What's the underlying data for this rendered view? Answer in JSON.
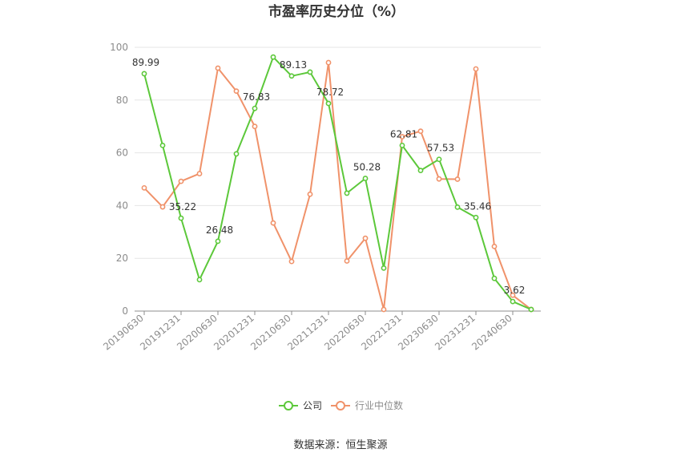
{
  "chart_data": {
    "type": "line",
    "title": "市盈率历史分位（%）",
    "source": "数据来源：恒生聚源",
    "ylim": [
      0,
      100
    ],
    "yticks": [
      0,
      20,
      40,
      60,
      80,
      100
    ],
    "grid": true,
    "legend_position": "bottom",
    "x": [
      "20190630",
      "20190930",
      "20191231",
      "20200331",
      "20200630",
      "20200930",
      "20201231",
      "20210331",
      "20210630",
      "20210930",
      "20211231",
      "20220331",
      "20220630",
      "20220930",
      "20221231",
      "20230331",
      "20230630",
      "20230930",
      "20231231",
      "20240331",
      "20240630",
      "20240930"
    ],
    "x_tick_labels": [
      "20190630",
      "20191231",
      "20200630",
      "20201231",
      "20210630",
      "20211231",
      "20220630",
      "20221231",
      "20230630",
      "20231231",
      "20240630"
    ],
    "series": [
      {
        "name": "公司",
        "color": "#5cc83a",
        "values": [
          89.99,
          62.8,
          35.22,
          11.9,
          26.48,
          59.6,
          76.83,
          96.3,
          89.13,
          90.6,
          78.72,
          44.7,
          50.28,
          16.3,
          62.81,
          53.3,
          57.53,
          39.4,
          35.46,
          12.4,
          3.62,
          0.6
        ],
        "labels": [
          "89.99",
          "",
          "35.22",
          "",
          "26.48",
          "",
          "76.83",
          "",
          "89.13",
          "",
          "78.72",
          "",
          "50.28",
          "",
          "62.81",
          "",
          "57.53",
          "",
          "35.46",
          "",
          "3.62",
          ""
        ]
      },
      {
        "name": "行业中位数",
        "color": "#f0926a",
        "values": [
          46.7,
          39.5,
          49.2,
          52.1,
          92.1,
          83.4,
          70.0,
          33.4,
          18.8,
          44.3,
          94.2,
          19.0,
          27.6,
          0.6,
          66.1,
          68.2,
          50.1,
          50.0,
          91.8,
          24.5,
          6.0,
          0.6
        ]
      }
    ]
  }
}
